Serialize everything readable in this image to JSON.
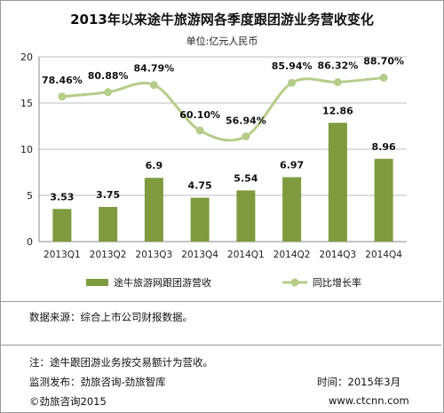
{
  "chart_data": {
    "type": "bar",
    "title": "2013年以来途牛旅游网各季度跟团游业务营收变化",
    "subtitle": "单位:亿元人民币",
    "categories": [
      "2013Q1",
      "2013Q2",
      "2013Q3",
      "2013Q4",
      "2014Q1",
      "2014Q2",
      "2014Q3",
      "2014Q4"
    ],
    "series": [
      {
        "name": "途牛旅游网跟团游营收",
        "type": "bar",
        "values": [
          3.53,
          3.75,
          6.9,
          4.75,
          5.54,
          6.97,
          12.86,
          8.96
        ],
        "labels": [
          "3.53",
          "3.75",
          "6.9",
          "4.75",
          "5.54",
          "6.97",
          "12.86",
          "8.96"
        ],
        "color": "#7f9a3f"
      },
      {
        "name": "同比增长率",
        "type": "line",
        "values": [
          78.46,
          80.88,
          84.79,
          60.1,
          56.94,
          85.94,
          86.32,
          88.7
        ],
        "labels": [
          "78.46%",
          "80.88%",
          "84.79%",
          "60.10%",
          "56.94%",
          "85.94%",
          "86.32%",
          "88.70%"
        ],
        "color": "#b5cd89"
      }
    ],
    "y_axis": {
      "ticks": [
        "0",
        "5",
        "10",
        "15",
        "20"
      ],
      "ylim": [
        0,
        20
      ]
    },
    "grid": true,
    "legend": "bottom"
  },
  "footer": {
    "source": "数据来源：综合上市公司财报数据。",
    "note": "注：途牛跟团游业务按交易额计为营收。",
    "publisher": "监测发布：劲旅咨询-劲旅智库",
    "time": "时间：2015年3月",
    "copyright": "©劲旅咨询2015",
    "website": "www.ctcnn.com"
  }
}
